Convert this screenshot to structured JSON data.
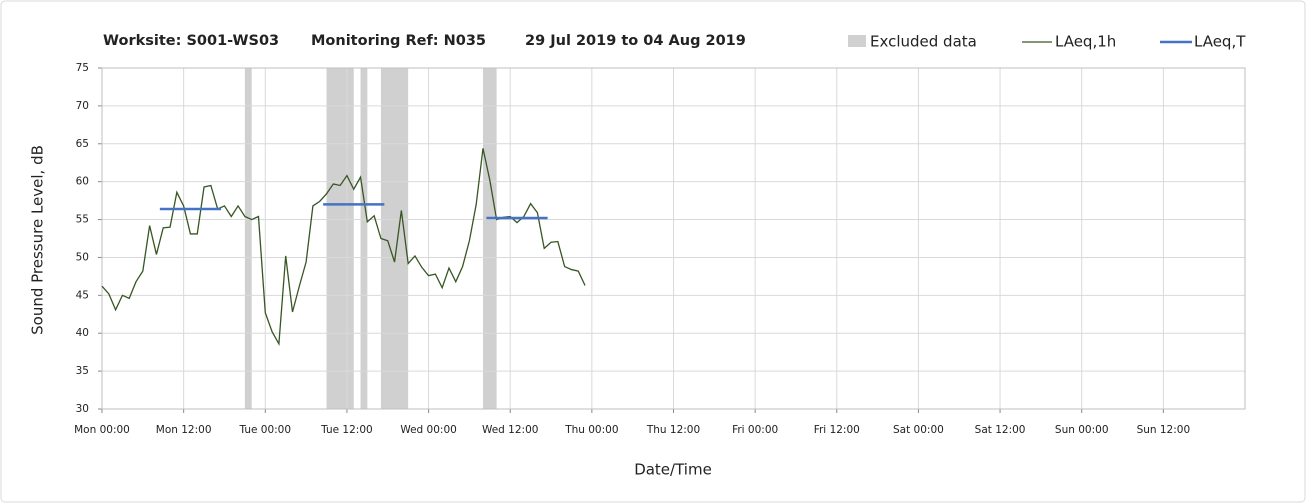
{
  "chart_data": {
    "type": "line",
    "title": [
      "Worksite: S001-WS03",
      "Monitoring Ref: N035",
      "29 Jul 2019 to 04 Aug 2019"
    ],
    "x_label": "Date/Time",
    "y_label": "Sound Pressure Level, dB",
    "x": [
      0,
      1,
      2,
      3,
      4,
      5,
      6,
      7,
      8,
      9,
      10,
      11,
      12,
      13,
      14,
      15,
      16,
      17,
      18,
      19,
      20,
      21,
      22,
      23,
      24,
      25,
      26,
      27,
      28,
      29,
      30,
      31,
      32,
      33,
      34,
      35,
      36,
      37,
      38,
      39,
      40,
      41,
      42,
      43,
      44,
      45,
      46,
      47,
      48,
      49,
      50,
      51,
      52,
      53,
      54,
      55,
      56,
      57,
      58,
      59,
      60,
      61,
      62,
      63,
      64,
      65,
      66,
      67,
      68,
      69,
      70,
      71
    ],
    "series": [
      {
        "name": "LAeq,1h",
        "color": "#375623",
        "values": [
          46.2,
          45.2,
          43.1,
          45.0,
          44.6,
          46.8,
          48.2,
          54.2,
          50.4,
          53.9,
          54.0,
          58.6,
          56.8,
          53.1,
          53.1,
          59.3,
          59.5,
          56.4,
          56.8,
          55.4,
          56.8,
          55.4,
          55.0,
          55.4,
          42.7,
          40.2,
          38.6,
          50.2,
          42.8,
          46.2,
          49.4,
          56.8,
          57.4,
          58.4,
          59.7,
          59.5,
          60.8,
          59.0,
          60.6,
          54.7,
          55.5,
          52.5,
          52.2,
          49.4,
          56.2,
          49.2,
          50.2,
          48.7,
          47.6,
          47.8,
          46.0,
          48.6,
          46.8,
          48.8,
          52.2,
          57.0,
          64.4,
          60.2,
          55.0,
          55.3,
          55.4,
          54.6,
          55.4,
          57.1,
          55.9,
          51.2,
          52.0,
          52.1,
          48.8,
          48.4,
          48.2,
          46.3
        ]
      }
    ],
    "period_levels": {
      "name": "LAeq,T",
      "color": "#4472c4",
      "segments": [
        {
          "start": 8.5,
          "end": 17.5,
          "value": 56.4
        },
        {
          "start": 32.5,
          "end": 41.5,
          "value": 57.0
        },
        {
          "start": 56.5,
          "end": 65.5,
          "value": 55.2
        }
      ]
    },
    "excluded": {
      "name": "Excluded data",
      "color": "#d0d0d0",
      "ranges": [
        [
          21,
          22
        ],
        [
          33,
          37
        ],
        [
          38,
          39
        ],
        [
          41,
          45
        ],
        [
          56,
          58
        ]
      ]
    },
    "xlim": [
      0,
      168
    ],
    "xticks": [
      {
        "value": 0,
        "label": "Mon 00:00"
      },
      {
        "value": 12,
        "label": "Mon 12:00"
      },
      {
        "value": 24,
        "label": "Tue 00:00"
      },
      {
        "value": 36,
        "label": "Tue 12:00"
      },
      {
        "value": 48,
        "label": "Wed 00:00"
      },
      {
        "value": 60,
        "label": "Wed 12:00"
      },
      {
        "value": 72,
        "label": "Thu 00:00"
      },
      {
        "value": 84,
        "label": "Thu 12:00"
      },
      {
        "value": 96,
        "label": "Fri 00:00"
      },
      {
        "value": 108,
        "label": "Fri 12:00"
      },
      {
        "value": 120,
        "label": "Sat 00:00"
      },
      {
        "value": 132,
        "label": "Sat 12:00"
      },
      {
        "value": 144,
        "label": "Sun 00:00"
      },
      {
        "value": 156,
        "label": "Sun 12:00"
      }
    ],
    "ylim": [
      30,
      75
    ],
    "yticks": [
      30,
      35,
      40,
      45,
      50,
      55,
      60,
      65,
      70,
      75
    ],
    "grid": true
  }
}
